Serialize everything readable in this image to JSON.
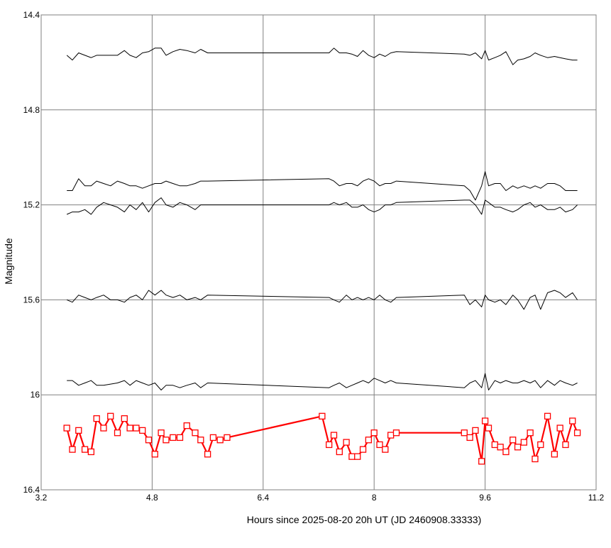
{
  "chart_data": {
    "type": "line",
    "xlabel": "Hours since 2025-08-20 20h UT (JD 2460908.33333)",
    "ylabel": "Magnitude",
    "xlim": [
      3.2,
      11.2
    ],
    "ylim": [
      14.4,
      16.4
    ],
    "y_inverted": true,
    "grid": true,
    "x_ticks": [
      "3.2",
      "4.8",
      "6.4",
      "8",
      "9.6",
      "11.2"
    ],
    "x_tick_values": [
      3.2,
      4.8,
      6.4,
      8.0,
      9.6,
      11.2
    ],
    "y_ticks": [
      "14.4",
      "14.8",
      "15.2",
      "15.6",
      "16",
      "16.4"
    ],
    "y_tick_values": [
      14.4,
      14.8,
      15.2,
      15.6,
      16.0,
      16.4
    ],
    "colors": {
      "comparison": "#000000",
      "target": "#ff0000",
      "grid": "#808080"
    },
    "series": [
      {
        "role": "comparison",
        "x": [
          3.57,
          3.65,
          3.74,
          3.83,
          3.92,
          4.0,
          4.1,
          4.2,
          4.3,
          4.4,
          4.48,
          4.57,
          4.66,
          4.75,
          4.84,
          4.93,
          5.0,
          5.1,
          5.2,
          5.3,
          5.42,
          5.5,
          5.6,
          7.35,
          7.42,
          7.5,
          7.6,
          7.68,
          7.76,
          7.84,
          7.92,
          8.0,
          8.08,
          8.16,
          8.24,
          8.32,
          9.3,
          9.38,
          9.46,
          9.55,
          9.6,
          9.65,
          9.74,
          9.82,
          9.9,
          10.0,
          10.07,
          10.16,
          10.25,
          10.32,
          10.4,
          10.5,
          10.6,
          10.68,
          10.76,
          10.86,
          10.93
        ],
        "y": [
          14.57,
          14.59,
          14.56,
          14.57,
          14.58,
          14.57,
          14.57,
          14.57,
          14.57,
          14.55,
          14.57,
          14.58,
          14.56,
          14.555,
          14.54,
          14.54,
          14.57,
          14.555,
          14.545,
          14.55,
          14.56,
          14.545,
          14.56,
          14.56,
          14.54,
          14.56,
          14.56,
          14.565,
          14.575,
          14.55,
          14.57,
          14.58,
          14.565,
          14.575,
          14.56,
          14.555,
          14.565,
          14.57,
          14.56,
          14.585,
          14.55,
          14.59,
          14.58,
          14.57,
          14.555,
          14.61,
          14.59,
          14.585,
          14.575,
          14.56,
          14.57,
          14.58,
          14.575,
          14.58,
          14.585,
          14.59,
          14.59
        ]
      },
      {
        "role": "comparison",
        "x": [
          3.57,
          3.65,
          3.74,
          3.83,
          3.92,
          4.0,
          4.1,
          4.2,
          4.3,
          4.4,
          4.48,
          4.57,
          4.66,
          4.75,
          4.84,
          4.93,
          5.0,
          5.1,
          5.2,
          5.3,
          5.42,
          5.5,
          5.6,
          7.35,
          7.42,
          7.5,
          7.6,
          7.68,
          7.76,
          7.84,
          7.92,
          8.0,
          8.08,
          8.16,
          8.24,
          8.32,
          9.3,
          9.38,
          9.46,
          9.55,
          9.6,
          9.65,
          9.74,
          9.82,
          9.9,
          10.0,
          10.07,
          10.16,
          10.25,
          10.32,
          10.4,
          10.5,
          10.6,
          10.68,
          10.76,
          10.86,
          10.93
        ],
        "y": [
          15.14,
          15.14,
          15.09,
          15.12,
          15.12,
          15.1,
          15.11,
          15.12,
          15.1,
          15.11,
          15.12,
          15.12,
          15.13,
          15.12,
          15.11,
          15.11,
          15.1,
          15.11,
          15.12,
          15.12,
          15.11,
          15.1,
          15.1,
          15.09,
          15.1,
          15.12,
          15.11,
          15.11,
          15.12,
          15.1,
          15.09,
          15.1,
          15.12,
          15.11,
          15.11,
          15.1,
          15.12,
          15.14,
          15.18,
          15.12,
          15.06,
          15.12,
          15.11,
          15.11,
          15.14,
          15.12,
          15.13,
          15.12,
          15.13,
          15.12,
          15.13,
          15.11,
          15.11,
          15.12,
          15.14,
          15.14,
          15.14
        ]
      },
      {
        "role": "comparison",
        "x": [
          3.57,
          3.65,
          3.74,
          3.83,
          3.92,
          4.0,
          4.1,
          4.2,
          4.3,
          4.4,
          4.48,
          4.57,
          4.66,
          4.75,
          4.84,
          4.93,
          5.0,
          5.1,
          5.2,
          5.3,
          5.42,
          5.5,
          5.6,
          7.35,
          7.42,
          7.5,
          7.6,
          7.68,
          7.76,
          7.84,
          7.92,
          8.0,
          8.08,
          8.16,
          8.24,
          8.32,
          9.3,
          9.38,
          9.46,
          9.55,
          9.6,
          9.65,
          9.74,
          9.82,
          9.9,
          10.0,
          10.07,
          10.16,
          10.25,
          10.32,
          10.4,
          10.5,
          10.6,
          10.68,
          10.76,
          10.86,
          10.93
        ],
        "y": [
          15.24,
          15.23,
          15.23,
          15.22,
          15.24,
          15.21,
          15.19,
          15.2,
          15.21,
          15.23,
          15.2,
          15.22,
          15.19,
          15.23,
          15.19,
          15.17,
          15.2,
          15.21,
          15.19,
          15.2,
          15.22,
          15.2,
          15.2,
          15.2,
          15.19,
          15.2,
          15.19,
          15.21,
          15.21,
          15.2,
          15.22,
          15.23,
          15.22,
          15.2,
          15.2,
          15.19,
          15.18,
          15.18,
          15.2,
          15.24,
          15.18,
          15.19,
          15.21,
          15.21,
          15.22,
          15.23,
          15.22,
          15.2,
          15.19,
          15.21,
          15.2,
          15.22,
          15.22,
          15.21,
          15.23,
          15.22,
          15.2
        ]
      },
      {
        "role": "comparison",
        "x": [
          3.57,
          3.65,
          3.74,
          3.83,
          3.92,
          4.0,
          4.1,
          4.2,
          4.3,
          4.4,
          4.48,
          4.57,
          4.66,
          4.75,
          4.84,
          4.93,
          5.0,
          5.1,
          5.2,
          5.3,
          5.42,
          5.5,
          5.6,
          7.35,
          7.42,
          7.5,
          7.6,
          7.68,
          7.76,
          7.84,
          7.92,
          8.0,
          8.08,
          8.16,
          8.24,
          8.32,
          9.3,
          9.38,
          9.46,
          9.55,
          9.6,
          9.65,
          9.74,
          9.82,
          9.9,
          10.0,
          10.07,
          10.16,
          10.25,
          10.32,
          10.4,
          10.5,
          10.6,
          10.68,
          10.76,
          10.86,
          10.93
        ],
        "y": [
          15.6,
          15.61,
          15.58,
          15.59,
          15.6,
          15.59,
          15.58,
          15.6,
          15.6,
          15.61,
          15.59,
          15.58,
          15.6,
          15.56,
          15.58,
          15.56,
          15.58,
          15.59,
          15.58,
          15.6,
          15.59,
          15.6,
          15.58,
          15.59,
          15.6,
          15.61,
          15.58,
          15.6,
          15.59,
          15.6,
          15.59,
          15.6,
          15.58,
          15.6,
          15.61,
          15.59,
          15.58,
          15.62,
          15.6,
          15.63,
          15.58,
          15.6,
          15.61,
          15.6,
          15.62,
          15.58,
          15.6,
          15.64,
          15.59,
          15.58,
          15.64,
          15.57,
          15.56,
          15.57,
          15.59,
          15.57,
          15.6
        ]
      },
      {
        "role": "comparison",
        "x": [
          3.57,
          3.65,
          3.74,
          3.83,
          3.92,
          4.0,
          4.1,
          4.2,
          4.3,
          4.4,
          4.48,
          4.57,
          4.66,
          4.75,
          4.84,
          4.93,
          5.0,
          5.1,
          5.2,
          5.3,
          5.42,
          5.5,
          5.6,
          7.35,
          7.42,
          7.5,
          7.6,
          7.68,
          7.76,
          7.84,
          7.92,
          8.0,
          8.08,
          8.16,
          8.24,
          8.32,
          9.3,
          9.38,
          9.46,
          9.55,
          9.6,
          9.65,
          9.74,
          9.82,
          9.9,
          10.0,
          10.07,
          10.16,
          10.25,
          10.32,
          10.4,
          10.5,
          10.6,
          10.68,
          10.76,
          10.86,
          10.93
        ],
        "y": [
          15.94,
          15.94,
          15.96,
          15.95,
          15.94,
          15.96,
          15.96,
          15.955,
          15.95,
          15.94,
          15.96,
          15.94,
          15.95,
          15.96,
          15.95,
          15.98,
          15.96,
          15.96,
          15.97,
          15.96,
          15.95,
          15.97,
          15.95,
          15.97,
          15.96,
          15.95,
          15.97,
          15.96,
          15.95,
          15.94,
          15.95,
          15.93,
          15.94,
          15.95,
          15.94,
          15.95,
          15.97,
          15.95,
          15.94,
          15.97,
          15.91,
          15.98,
          15.94,
          15.95,
          15.94,
          15.95,
          15.95,
          15.94,
          15.95,
          15.94,
          15.97,
          15.94,
          15.96,
          15.94,
          15.95,
          15.96,
          15.95
        ]
      },
      {
        "role": "target",
        "marker": "square",
        "x": [
          3.57,
          3.65,
          3.74,
          3.83,
          3.92,
          4.0,
          4.1,
          4.2,
          4.3,
          4.4,
          4.48,
          4.57,
          4.66,
          4.75,
          4.84,
          4.93,
          5.0,
          5.1,
          5.2,
          5.3,
          5.42,
          5.5,
          5.6,
          5.68,
          5.78,
          5.88,
          7.25,
          7.35,
          7.42,
          7.5,
          7.6,
          7.68,
          7.76,
          7.84,
          7.92,
          8.0,
          8.08,
          8.16,
          8.24,
          8.32,
          9.3,
          9.38,
          9.46,
          9.55,
          9.6,
          9.65,
          9.74,
          9.82,
          9.9,
          10.0,
          10.07,
          10.16,
          10.25,
          10.32,
          10.4,
          10.5,
          10.6,
          10.68,
          10.76,
          10.86,
          10.93
        ],
        "y": [
          16.14,
          16.23,
          16.15,
          16.23,
          16.24,
          16.1,
          16.14,
          16.09,
          16.16,
          16.1,
          16.14,
          16.14,
          16.15,
          16.19,
          16.25,
          16.16,
          16.19,
          16.18,
          16.18,
          16.13,
          16.16,
          16.19,
          16.25,
          16.18,
          16.19,
          16.18,
          16.09,
          16.21,
          16.17,
          16.24,
          16.2,
          16.26,
          16.26,
          16.23,
          16.19,
          16.16,
          16.21,
          16.23,
          16.17,
          16.16,
          16.16,
          16.18,
          16.15,
          16.28,
          16.11,
          16.14,
          16.21,
          16.22,
          16.24,
          16.19,
          16.22,
          16.2,
          16.16,
          16.27,
          16.21,
          16.09,
          16.25,
          16.14,
          16.21,
          16.11,
          16.16
        ]
      }
    ]
  }
}
